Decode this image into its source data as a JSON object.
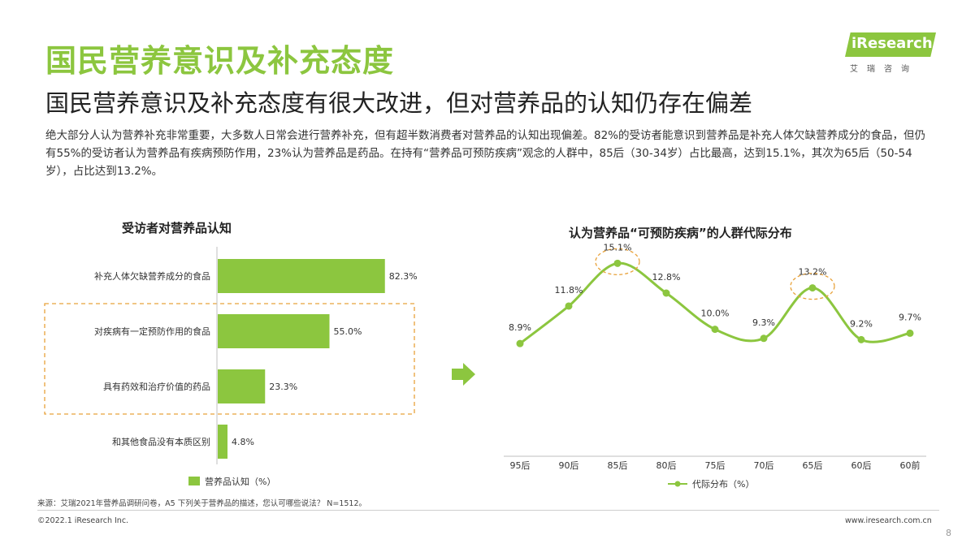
{
  "page": {
    "title": "国民营养意识及补充态度",
    "subtitle": "国民营养意识及补充态度有很大改进，但对营养品的认知仍存在偏差",
    "description": "绝大部分人认为营养补充非常重要，大多数人日常会进行营养补充，但有超半数消费者对营养品的认知出现偏差。82%的受访者能意识到营养品是补充人体欠缺营养成分的食品，但仍有55%的受访者认为营养品有疾病预防作用，23%认为营养品是药品。在持有“营养品可预防疾病”观念的人群中，85后（30-34岁）占比最高，达到15.1%，其次为65后（50-54岁），占比达到13.2%。",
    "logo_text": "iResearch",
    "logo_sub": "艾瑞咨询",
    "footer_source": "来源：艾瑞2021年营养品调研问卷，A5 下列关于营养品的描述，您认可哪些说法？ N=1512。",
    "footer_copy": "©2022.1 iResearch Inc.",
    "footer_url": "www.iresearch.com.cn",
    "page_number": "8"
  },
  "colors": {
    "accent": "#8cc63f",
    "highlight": "#e8a23a",
    "text": "#333333"
  },
  "icons": {
    "arrow": "right-arrow-icon"
  },
  "chart_data": [
    {
      "type": "bar",
      "orientation": "horizontal",
      "title": "受访者对营养品认知",
      "categories": [
        "补充人体欠缺营养成分的食品",
        "对疾病有一定预防作用的食品",
        "具有药效和治疗价值的药品",
        "和其他食品没有本质区别"
      ],
      "series": [
        {
          "name": "营养品认知（%）",
          "values": [
            82.3,
            55.0,
            23.3,
            4.8
          ]
        }
      ],
      "value_labels": [
        "82.3%",
        "55.0%",
        "23.3%",
        "4.8%"
      ],
      "xlim": [
        0,
        100
      ],
      "legend": "bottom",
      "highlighted_categories": [
        "对疾病有一定预防作用的食品",
        "具有药效和治疗价值的药品"
      ]
    },
    {
      "type": "line",
      "title": "认为营养品“可预防疾病”的人群代际分布",
      "categories": [
        "95后",
        "90后",
        "85后",
        "80后",
        "75后",
        "70后",
        "65后",
        "60后",
        "60前"
      ],
      "series": [
        {
          "name": "代际分布（%）",
          "values": [
            8.9,
            11.8,
            15.1,
            12.8,
            10.0,
            9.3,
            13.2,
            9.2,
            9.7
          ]
        }
      ],
      "value_labels": [
        "8.9%",
        "11.8%",
        "15.1%",
        "12.8%",
        "10.0%",
        "9.3%",
        "13.2%",
        "9.2%",
        "9.7%"
      ],
      "ylim": [
        0,
        16
      ],
      "smooth": true,
      "legend": "bottom",
      "highlighted_points": [
        "85后",
        "65后"
      ]
    }
  ]
}
